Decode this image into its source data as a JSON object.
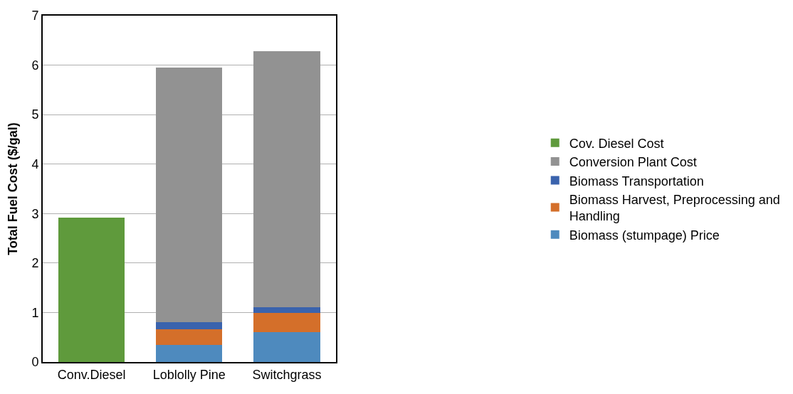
{
  "chart_data": {
    "type": "bar",
    "stacked": true,
    "ylabel": "Total Fuel Cost ($/gal)",
    "categories": [
      "Conv.Diesel",
      "Loblolly Pine",
      "Switchgrass"
    ],
    "series": [
      {
        "name": "Biomass (stumpage) Price",
        "color": "#4e8abe",
        "values": [
          null,
          0.34,
          0.6
        ]
      },
      {
        "name": "Biomass Harvest, Preprocessing and Handling",
        "color": "#d46f2a",
        "values": [
          null,
          0.32,
          0.39
        ]
      },
      {
        "name": "Biomass Transportation",
        "color": "#3a63ad",
        "values": [
          null,
          0.15,
          0.12
        ]
      },
      {
        "name": "Conversion Plant Cost",
        "color": "#929292",
        "values": [
          null,
          5.14,
          5.17
        ]
      },
      {
        "name": "Cov. Diesel Cost",
        "color": "#5f9a3c",
        "values": [
          2.92,
          null,
          null
        ]
      }
    ],
    "ylim": [
      0,
      7
    ],
    "yticks": [
      0,
      1,
      2,
      3,
      4,
      5,
      6,
      7
    ],
    "grid": "y",
    "legend": "right"
  }
}
